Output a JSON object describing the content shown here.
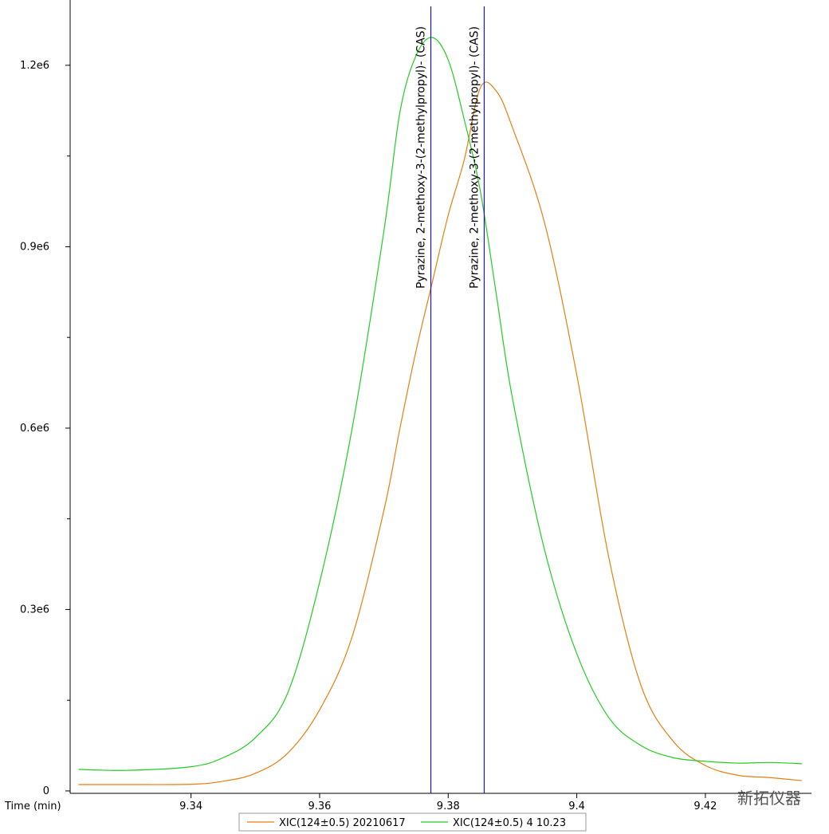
{
  "chart_data": {
    "type": "line",
    "x_label": "Time (min)",
    "x": [
      9.3225,
      9.33,
      9.34,
      9.345,
      9.35,
      9.355,
      9.36,
      9.365,
      9.37,
      9.3725,
      9.375,
      9.3775,
      9.38,
      9.3825,
      9.385,
      9.3875,
      9.39,
      9.395,
      9.4,
      9.405,
      9.41,
      9.415,
      9.42,
      9.425,
      9.43,
      9.435
    ],
    "series": [
      {
        "name": "XIC(124±0.5) 20210617",
        "color": "#e67e10",
        "values": [
          10500,
          10500,
          11000,
          16000,
          29000,
          62000,
          134000,
          253000,
          464000,
          600000,
          728000,
          840000,
          952000,
          1044000,
          1163000,
          1157000,
          1097000,
          939000,
          688000,
          385000,
          174000,
          82000,
          42000,
          26000,
          22000,
          17000
        ]
      },
      {
        "name": "XIC(124±0.5) 4 10.23",
        "color": "#22cc22",
        "values": [
          35600,
          34000,
          40000,
          55000,
          88000,
          161000,
          345000,
          596000,
          926000,
          1123000,
          1216000,
          1246000,
          1209000,
          1110000,
          992000,
          820000,
          649000,
          398000,
          227000,
          121000,
          75000,
          55000,
          49000,
          46000,
          47000,
          45000
        ]
      }
    ],
    "markers": [
      {
        "x": 9.3773,
        "label": "Pyrazine, 2-methoxy-3-(2-methylpropyl)- (CAS)",
        "color": "#1a1aaa"
      },
      {
        "x": 9.3856,
        "label": "Pyrazine, 2-methoxy-3-(2-methylpropyl)- (CAS)",
        "color": "#1a1aaa"
      }
    ],
    "xlim": [
      9.3212,
      9.4365
    ],
    "xticks": [
      9.34,
      9.36,
      9.38,
      9.4,
      9.42
    ],
    "ylim": [
      -4000,
      1308000
    ],
    "yticks": [
      0,
      {
        "value": 300000,
        "label": "0.3e6"
      },
      {
        "value": 600000,
        "label": "0.6e6"
      },
      {
        "value": 900000,
        "label": "0.9e6"
      },
      {
        "value": 1200000,
        "label": "1.2e6"
      }
    ],
    "yminor": [
      150000,
      450000,
      750000,
      1050000
    ],
    "watermark": "新拓仪器"
  }
}
